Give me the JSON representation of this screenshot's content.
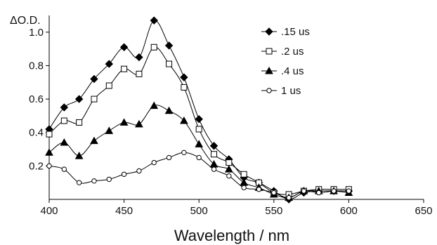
{
  "chart_data": {
    "type": "line",
    "xlabel": "Wavelength / nm",
    "ylabel": "ΔO.D.",
    "xlim": [
      400,
      650
    ],
    "ylim": [
      0,
      1.1
    ],
    "xticks": [
      400,
      450,
      500,
      550,
      600,
      650
    ],
    "yticks": [
      0.2,
      0.4,
      0.6,
      0.8,
      1.0
    ],
    "ytick_labels": [
      "0.2",
      "0.4",
      "0.6",
      "0.8",
      "1.0"
    ],
    "x": [
      400,
      410,
      420,
      430,
      440,
      450,
      460,
      470,
      480,
      490,
      500,
      510,
      520,
      530,
      540,
      550,
      560,
      570,
      580,
      590,
      600
    ],
    "series": [
      {
        "name": ".15 us",
        "marker": "filled-diamond",
        "values": [
          0.42,
          0.55,
          0.6,
          0.72,
          0.81,
          0.91,
          0.85,
          1.07,
          0.92,
          0.73,
          0.48,
          0.32,
          0.24,
          0.13,
          0.1,
          0.05,
          0.0,
          0.04,
          0.05,
          0.05,
          0.05
        ]
      },
      {
        "name": ".2 us",
        "marker": "open-square",
        "values": [
          0.39,
          0.47,
          0.46,
          0.6,
          0.68,
          0.78,
          0.75,
          0.91,
          0.81,
          0.67,
          0.42,
          0.27,
          0.22,
          0.15,
          0.1,
          0.04,
          0.03,
          0.05,
          0.06,
          0.06,
          0.06
        ]
      },
      {
        "name": ".4 us",
        "marker": "filled-triangle",
        "values": [
          0.28,
          0.34,
          0.26,
          0.35,
          0.41,
          0.46,
          0.45,
          0.56,
          0.53,
          0.47,
          0.33,
          0.21,
          0.18,
          0.1,
          0.07,
          0.03,
          0.01,
          0.05,
          0.05,
          0.05,
          0.04
        ]
      },
      {
        "name": "1 us",
        "marker": "open-circle",
        "values": [
          0.2,
          0.18,
          0.1,
          0.11,
          0.12,
          0.15,
          0.17,
          0.22,
          0.25,
          0.28,
          0.25,
          0.18,
          0.14,
          0.07,
          0.06,
          0.04,
          0.01,
          0.05,
          0.04,
          0.05,
          0.05
        ]
      }
    ],
    "legend_position": "top-right"
  }
}
